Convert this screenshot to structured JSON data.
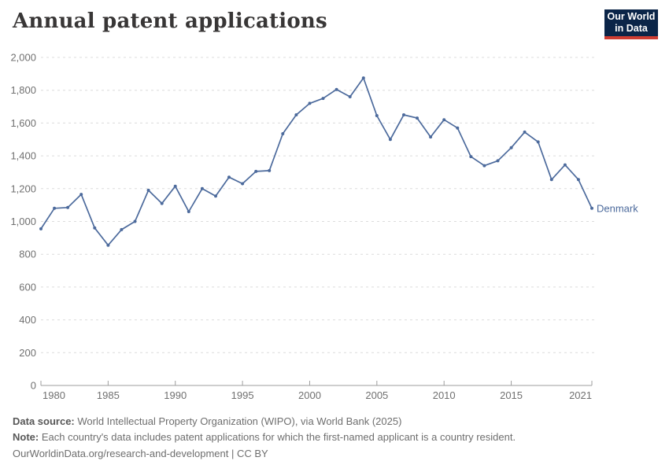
{
  "header": {
    "title": "Annual patent applications",
    "logo": {
      "line1": "Our World",
      "line2": "in Data"
    }
  },
  "chart_data": {
    "type": "line",
    "title": "Annual patent applications",
    "x": [
      1980,
      1981,
      1982,
      1983,
      1984,
      1985,
      1986,
      1987,
      1988,
      1989,
      1990,
      1991,
      1992,
      1993,
      1994,
      1995,
      1996,
      1997,
      1998,
      1999,
      2000,
      2001,
      2002,
      2003,
      2004,
      2005,
      2006,
      2007,
      2008,
      2009,
      2010,
      2011,
      2012,
      2013,
      2014,
      2015,
      2016,
      2017,
      2018,
      2019,
      2020,
      2021
    ],
    "series": [
      {
        "name": "Denmark",
        "color": "#4c6a9c",
        "values": [
          955,
          1080,
          1085,
          1165,
          960,
          855,
          950,
          1000,
          1190,
          1110,
          1215,
          1060,
          1200,
          1155,
          1270,
          1230,
          1305,
          1310,
          1535,
          1650,
          1720,
          1750,
          1805,
          1760,
          1875,
          1645,
          1500,
          1650,
          1630,
          1515,
          1620,
          1570,
          1395,
          1340,
          1370,
          1450,
          1545,
          1485,
          1255,
          1345,
          1255,
          1080
        ]
      }
    ],
    "xlim": [
      1980,
      2021
    ],
    "ylim": [
      0,
      2000
    ],
    "x_ticks": [
      1980,
      1985,
      1990,
      1995,
      2000,
      2005,
      2010,
      2015,
      2021
    ],
    "x_tick_labels": [
      "1980",
      "1985",
      "1990",
      "1995",
      "2000",
      "2005",
      "2010",
      "2015",
      "2021"
    ],
    "y_ticks": [
      0,
      200,
      400,
      600,
      800,
      1000,
      1200,
      1400,
      1600,
      1800,
      2000
    ],
    "y_tick_labels": [
      "0",
      "200",
      "400",
      "600",
      "800",
      "1,000",
      "1,200",
      "1,400",
      "1,600",
      "1,800",
      "2,000"
    ],
    "grid": "horizontal-dashed",
    "legend_position": "end-of-line-label",
    "end_label": "Denmark"
  },
  "footer": {
    "data_source_label": "Data source:",
    "data_source_text": " World Intellectual Property Organization (WIPO), via World Bank (2025)",
    "note_label": "Note:",
    "note_text": " Each country's data includes patent applications for which the first-named applicant is a country resident.",
    "license": "OurWorldinData.org/research-and-development | CC BY"
  },
  "colors": {
    "line": "#4c6a9c",
    "grid": "#dcdcdc",
    "axis": "#9e9e9e",
    "tick_label": "#707070",
    "title": "#383636",
    "footer_label": "#575757",
    "footer_text": "#6e6e6e",
    "logo_navy": "#0b2548",
    "logo_red": "#cf3d32"
  }
}
